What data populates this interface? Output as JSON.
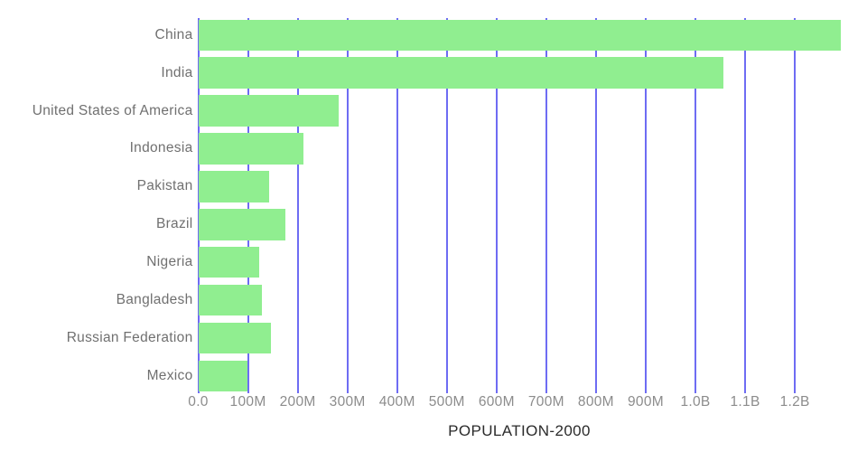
{
  "chart_data": {
    "type": "bar",
    "orientation": "horizontal",
    "title": "POPULATION-2000",
    "categories": [
      "China",
      "India",
      "United States of America",
      "Indonesia",
      "Pakistan",
      "Brazil",
      "Nigeria",
      "Bangladesh",
      "Russian Federation",
      "Mexico"
    ],
    "values": [
      1291500000,
      1057000000,
      282200000,
      211900000,
      142400000,
      175700000,
      123500000,
      128400000,
      146600000,
      99400000
    ],
    "xlabel": "",
    "ylabel": "",
    "xlim": [
      0,
      1291500000
    ],
    "x_ticks": [
      {
        "value": 0,
        "label": "0.0"
      },
      {
        "value": 100000000,
        "label": "100M"
      },
      {
        "value": 200000000,
        "label": "200M"
      },
      {
        "value": 300000000,
        "label": "300M"
      },
      {
        "value": 400000000,
        "label": "400M"
      },
      {
        "value": 500000000,
        "label": "500M"
      },
      {
        "value": 600000000,
        "label": "600M"
      },
      {
        "value": 700000000,
        "label": "700M"
      },
      {
        "value": 800000000,
        "label": "800M"
      },
      {
        "value": 900000000,
        "label": "900M"
      },
      {
        "value": 1000000000,
        "label": "1.0B"
      },
      {
        "value": 1100000000,
        "label": "1.1B"
      },
      {
        "value": 1200000000,
        "label": "1.2B"
      }
    ],
    "grid": true,
    "legend": false,
    "title_position": "bottom-center"
  },
  "colors": {
    "bar": "#90ee90",
    "gridline": "#6e6cf3",
    "category_label": "#707070",
    "tick_label": "#8c8c8c",
    "title": "#2b2b2b",
    "background": "#ffffff"
  }
}
